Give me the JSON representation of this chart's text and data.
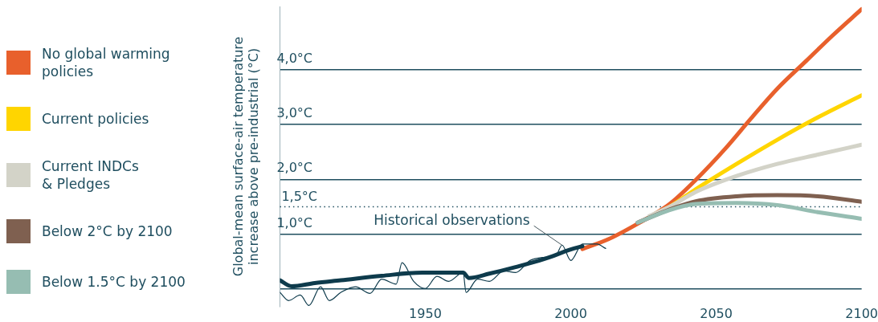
{
  "chart_data": {
    "type": "line",
    "ylabel": "Global-mean surface-air temperature\nincrease above pre-industrial (°C)",
    "xlim": [
      1900,
      2100
    ],
    "xticks": [
      1950,
      2000,
      2050,
      2100
    ],
    "ylim": [
      -0.32,
      5.15
    ],
    "yticks": [
      {
        "value": 0,
        "label": null
      },
      {
        "value": 1,
        "label": "1,0°C"
      },
      {
        "value": 2,
        "label": "2,0°C"
      },
      {
        "value": 3,
        "label": "3,0°C"
      },
      {
        "value": 4,
        "label": "4,0°C"
      }
    ],
    "ref_lines": [
      {
        "axis": "y",
        "value": 1.5,
        "label": "1,5°C",
        "line_style": "dotted",
        "color": "#1f4e5f"
      }
    ],
    "grid": "y",
    "legend": "left",
    "marker": "none",
    "line_style": "solid",
    "annotations": [
      {
        "text": "Historical observations",
        "x": 1997,
        "y": 0.8
      }
    ],
    "series": [
      {
        "color": "#0e3b4c",
        "x": [
          1900,
          1903,
          1907,
          1910,
          1914,
          1917,
          1921,
          1926,
          1931,
          1935,
          1940,
          1942,
          1946,
          1950,
          1954,
          1958,
          1963,
          1964,
          1968,
          1972,
          1977,
          1981,
          1986,
          1991,
          1995,
          1997,
          2000,
          2004,
          2009,
          2012
        ],
        "values": [
          -0.06,
          -0.21,
          -0.11,
          -0.3,
          0.04,
          -0.21,
          -0.06,
          0.04,
          -0.08,
          0.18,
          0.09,
          0.48,
          0.14,
          0.01,
          0.23,
          0.14,
          0.3,
          -0.06,
          0.18,
          0.14,
          0.33,
          0.3,
          0.52,
          0.58,
          0.62,
          0.8,
          0.52,
          0.82,
          0.82,
          0.74
        ]
      },
      {
        "color": "#0e3b4c",
        "x": [
          1900,
          1904,
          1912,
          1921,
          1935,
          1949,
          1963,
          1965,
          1972,
          1981,
          1991,
          2000,
          2004
        ],
        "values": [
          0.16,
          0.05,
          0.11,
          0.16,
          0.24,
          0.3,
          0.3,
          0.2,
          0.28,
          0.4,
          0.55,
          0.72,
          0.78
        ]
      },
      {
        "name": "Below 1.5°C by 2100",
        "color": "#96bdb2",
        "x": [
          2023,
          2034,
          2043,
          2057,
          2071,
          2085,
          2100
        ],
        "values": [
          1.21,
          1.44,
          1.55,
          1.57,
          1.53,
          1.4,
          1.28
        ]
      },
      {
        "name": "Below 2°C by 2100",
        "color": "#7f6050",
        "x": [
          2023,
          2034,
          2043,
          2057,
          2071,
          2085,
          2100
        ],
        "values": [
          1.21,
          1.45,
          1.6,
          1.69,
          1.71,
          1.69,
          1.59
        ]
      },
      {
        "name": "Current INDCs\n& Pledges",
        "color": "#d3d3c8",
        "x": [
          2027,
          2034,
          2043,
          2057,
          2071,
          2085,
          2100
        ],
        "values": [
          1.33,
          1.5,
          1.77,
          2.06,
          2.28,
          2.45,
          2.63
        ]
      },
      {
        "name": "Current policies",
        "color": "#ffd500",
        "x": [
          2029,
          2034,
          2043,
          2057,
          2071,
          2085,
          2100
        ],
        "values": [
          1.37,
          1.5,
          1.82,
          2.28,
          2.72,
          3.13,
          3.53
        ]
      },
      {
        "name": "No global warming\npolicies",
        "color": "#e8602c",
        "x": [
          2004,
          2013,
          2023,
          2034,
          2043,
          2053,
          2062,
          2071,
          2081,
          2090,
          2100
        ],
        "values": [
          0.73,
          0.91,
          1.19,
          1.55,
          1.99,
          2.55,
          3.11,
          3.65,
          4.16,
          4.62,
          5.1
        ]
      }
    ]
  }
}
